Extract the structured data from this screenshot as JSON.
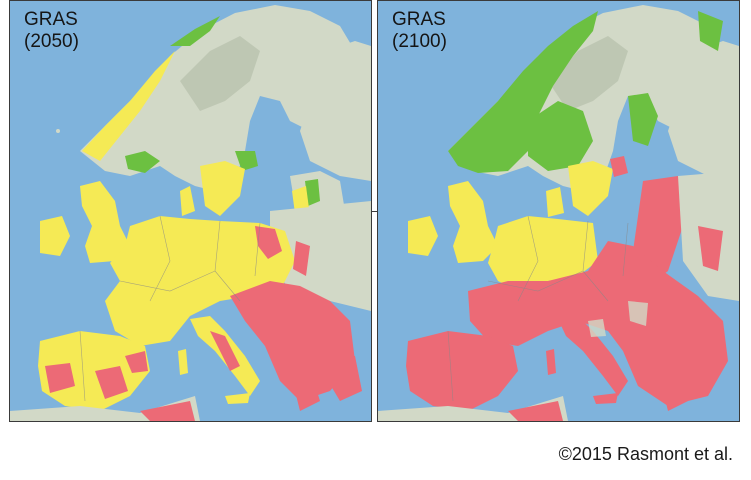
{
  "colors": {
    "sea": "#7fb3dc",
    "land": "#d2d9c7",
    "mountain": "#b9c2ae",
    "yellow": "#f5ea55",
    "red": "#ec6a76",
    "green": "#6cc041",
    "border": "#888888"
  },
  "maps": [
    {
      "scenario": "GRAS",
      "year": "(2050)"
    },
    {
      "scenario": "GRAS",
      "year": "(2100)"
    }
  ],
  "credit": "©2015 Rasmont et al."
}
